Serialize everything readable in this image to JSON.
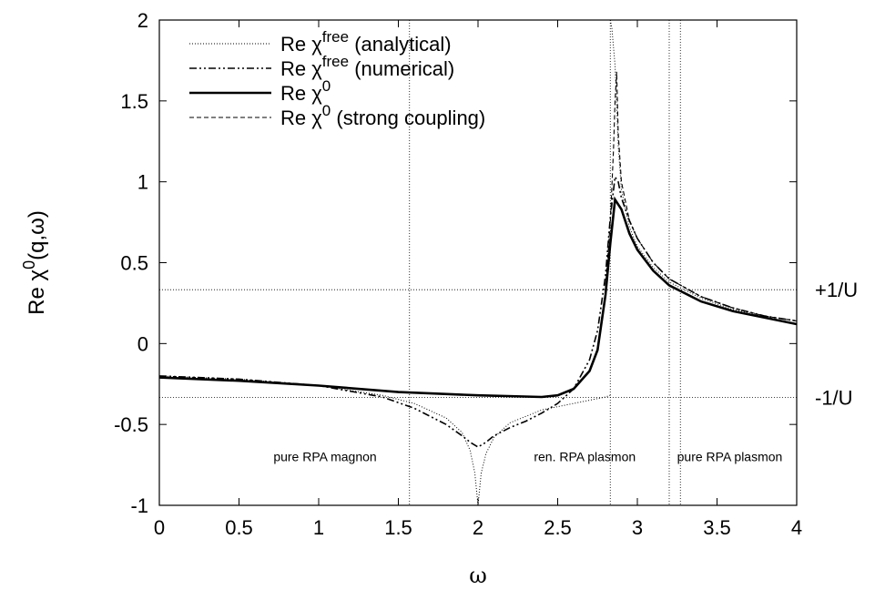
{
  "chart_data": {
    "type": "line",
    "xlabel": "ω",
    "ylabel_parts": {
      "pre": "Re χ",
      "sup": "0",
      "post": "(q,ω)"
    },
    "xlim": [
      0,
      4
    ],
    "ylim": [
      -1,
      2
    ],
    "x_ticks": [
      0,
      0.5,
      1,
      1.5,
      2,
      2.5,
      3,
      3.5,
      4
    ],
    "x_tick_labels": [
      "0",
      "0.5",
      "1",
      "1.5",
      "2",
      "2.5",
      "3",
      "3.5",
      "4"
    ],
    "y_ticks": [
      -1,
      -0.5,
      0,
      0.5,
      1,
      1.5,
      2
    ],
    "y_tick_labels": [
      "-1",
      "-0.5",
      "0",
      "0.5",
      "1",
      "1.5",
      "2"
    ],
    "grid": false,
    "legend_position": "top-left",
    "series": [
      {
        "name_parts": {
          "pre": "Re χ",
          "sup": "free",
          "post": " (analytical)"
        },
        "style": "dotted",
        "x": [
          0,
          0.5,
          1.0,
          1.4,
          1.6,
          1.8,
          1.9,
          1.95,
          1.98,
          2.0,
          2.02,
          2.05,
          2.1,
          2.2,
          2.4,
          2.6,
          2.8,
          2.83
        ],
        "y": [
          -0.2,
          -0.22,
          -0.26,
          -0.32,
          -0.37,
          -0.46,
          -0.55,
          -0.66,
          -0.8,
          -1.0,
          -0.8,
          -0.68,
          -0.58,
          -0.49,
          -0.41,
          -0.37,
          -0.33,
          -0.32
        ],
        "x2": [
          2.83,
          2.84,
          2.86,
          2.88,
          2.9,
          2.95,
          3.0,
          3.1,
          3.2,
          3.4,
          3.6,
          3.8,
          4.0
        ],
        "y2": [
          2.0,
          1.95,
          1.72,
          1.22,
          0.95,
          0.72,
          0.6,
          0.47,
          0.38,
          0.28,
          0.21,
          0.17,
          0.14
        ]
      },
      {
        "name_parts": {
          "pre": "Re χ",
          "sup": "free",
          "post": " (numerical)"
        },
        "style": "dashdot",
        "x": [
          0,
          0.5,
          1.0,
          1.4,
          1.6,
          1.8,
          1.9,
          1.95,
          2.0,
          2.05,
          2.1,
          2.2,
          2.3,
          2.4,
          2.5,
          2.6,
          2.7,
          2.75,
          2.8,
          2.83,
          2.86,
          2.88,
          2.9,
          2.95,
          3.0,
          3.1,
          3.2,
          3.4,
          3.6,
          3.8,
          4.0
        ],
        "y": [
          -0.2,
          -0.22,
          -0.26,
          -0.33,
          -0.4,
          -0.5,
          -0.57,
          -0.61,
          -0.64,
          -0.61,
          -0.57,
          -0.52,
          -0.48,
          -0.43,
          -0.37,
          -0.28,
          -0.1,
          0.08,
          0.42,
          0.78,
          1.03,
          1.0,
          0.9,
          0.76,
          0.65,
          0.5,
          0.4,
          0.29,
          0.22,
          0.17,
          0.14
        ]
      },
      {
        "name_parts": {
          "pre": "Re χ",
          "sup": "0",
          "post": ""
        },
        "style": "solid",
        "x": [
          0,
          0.5,
          1.0,
          1.5,
          2.0,
          2.4,
          2.5,
          2.6,
          2.7,
          2.75,
          2.8,
          2.83,
          2.86,
          2.9,
          2.95,
          3.0,
          3.1,
          3.2,
          3.4,
          3.6,
          3.8,
          4.0
        ],
        "y": [
          -0.21,
          -0.23,
          -0.26,
          -0.3,
          -0.32,
          -0.33,
          -0.32,
          -0.28,
          -0.17,
          -0.04,
          0.3,
          0.62,
          0.89,
          0.83,
          0.68,
          0.58,
          0.45,
          0.36,
          0.26,
          0.2,
          0.16,
          0.12
        ]
      },
      {
        "name_parts": {
          "pre": "Re χ",
          "sup": "0",
          "post": " (strong coupling)"
        },
        "style": "dashed",
        "x": [
          2.8,
          2.83,
          2.85,
          2.86,
          2.87,
          2.88,
          2.9,
          2.95,
          3.0,
          3.1,
          3.2,
          3.4,
          3.6,
          3.8,
          4.0
        ],
        "y": [
          0.35,
          0.75,
          1.2,
          1.5,
          1.68,
          1.3,
          1.0,
          0.76,
          0.65,
          0.5,
          0.4,
          0.29,
          0.22,
          0.17,
          0.14
        ]
      }
    ],
    "reference_lines": {
      "horizontal": [
        0.333,
        -0.333
      ],
      "vertical": [
        1.57,
        2.83,
        3.2,
        3.27
      ]
    },
    "annotations": [
      {
        "text": "pure RPA magnon",
        "x": 1.04,
        "y": -0.7
      },
      {
        "text": "ren. RPA plasmon",
        "x": 2.67,
        "y": -0.7
      },
      {
        "text": "pure RPA plasmon",
        "x": 3.58,
        "y": -0.7
      }
    ],
    "side_labels": [
      {
        "text": "+1/U",
        "y": 0.333
      },
      {
        "text": "-1/U",
        "y": -0.333
      }
    ]
  }
}
